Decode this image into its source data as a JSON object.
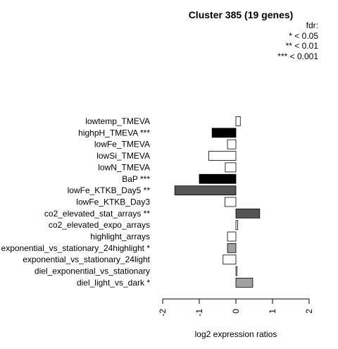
{
  "chart_data": {
    "type": "bar",
    "orientation": "horizontal",
    "title": "Cluster 385 (19 genes)",
    "xlabel": "log2 expression ratios",
    "xlim": [
      -2,
      2
    ],
    "x_ticks": [
      "-2",
      "-1",
      "0",
      "1",
      "2"
    ],
    "legend": {
      "title": "fdr:",
      "entries": [
        "* < 0.05",
        "** < 0.01",
        "*** < 0.001"
      ],
      "placement": "top-right"
    },
    "categories": [
      "lowtemp_TMEVA",
      "highpH_TMEVA ***",
      "lowFe_TMEVA",
      "lowSi_TMEVA",
      "lowN_TMEVA",
      "BaP ***",
      "lowFe_KTKB_Day5 **",
      "lowFe_KTKB_Day3",
      "co2_elevated_stat_arrays **",
      "co2_elevated_expo_arrays",
      "highlight_arrays",
      "exponential_vs_stationary_24highlight *",
      "exponential_vs_stationary_24light",
      "diel_exponential_vs_stationary",
      "diel_light_vs_dark *"
    ],
    "values": [
      0.12,
      -0.65,
      -0.23,
      -0.74,
      -0.29,
      -1.0,
      -1.67,
      -0.3,
      0.65,
      0.05,
      -0.23,
      -0.23,
      -0.35,
      0.03,
      0.46
    ],
    "colors": [
      "#ffffff",
      "#000000",
      "#ffffff",
      "#ffffff",
      "#ffffff",
      "#000000",
      "#555555",
      "#ffffff",
      "#555555",
      "#ffffff",
      "#ffffff",
      "#a0a0a0",
      "#ffffff",
      "#ffffff",
      "#a0a0a0"
    ]
  }
}
